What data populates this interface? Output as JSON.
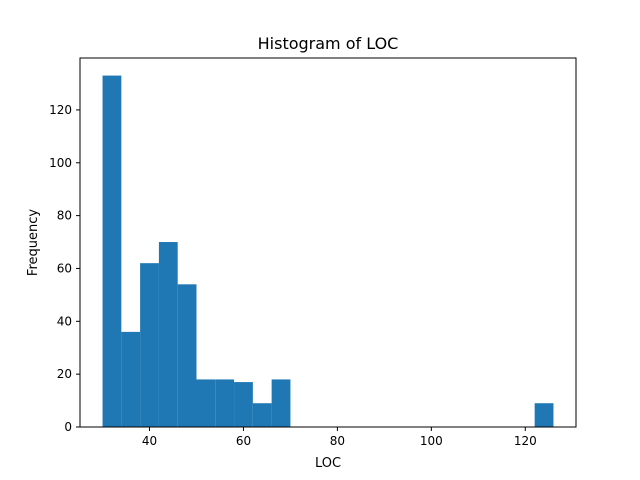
{
  "chart_data": {
    "type": "bar",
    "title": "Histogram of LOC",
    "xlabel": "LOC",
    "ylabel": "Frequency",
    "bin_edges": [
      30,
      34,
      38,
      42,
      46,
      50,
      54,
      58,
      62,
      66,
      70,
      74,
      78,
      82,
      86,
      90,
      94,
      98,
      102,
      106,
      110,
      114,
      118,
      122,
      126
    ],
    "values": [
      133,
      36,
      62,
      70,
      54,
      18,
      18,
      17,
      9,
      18,
      0,
      0,
      0,
      0,
      0,
      0,
      0,
      0,
      0,
      0,
      0,
      0,
      0,
      9
    ],
    "xlim": [
      25.2,
      130.8
    ],
    "ylim": [
      0,
      139.65
    ],
    "xticks": [
      40,
      60,
      80,
      100,
      120
    ],
    "yticks": [
      0,
      20,
      40,
      60,
      80,
      100,
      120
    ],
    "bar_color": "#1f77b4",
    "grid": false
  }
}
